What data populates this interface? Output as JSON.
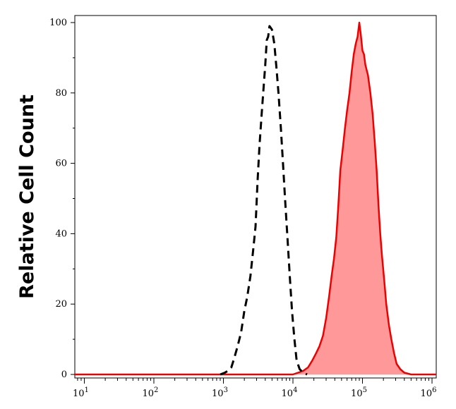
{
  "chart_data": {
    "type": "area",
    "title": "",
    "xlabel": "",
    "ylabel": "Relative Cell Count",
    "x_scale": "log",
    "xlim": [
      7.3,
      1150000
    ],
    "ylim": [
      -1,
      102
    ],
    "x_ticks": [
      {
        "value": 10,
        "base": "10",
        "exp": "1"
      },
      {
        "value": 100,
        "base": "10",
        "exp": "2"
      },
      {
        "value": 1000,
        "base": "10",
        "exp": "3"
      },
      {
        "value": 10000,
        "base": "10",
        "exp": "4"
      },
      {
        "value": 100000,
        "base": "10",
        "exp": "5"
      },
      {
        "value": 1000000,
        "base": "10",
        "exp": "6"
      }
    ],
    "y_ticks": [
      0,
      20,
      40,
      60,
      80,
      100
    ],
    "grid": false,
    "legend": "none",
    "series": [
      {
        "style": "dashed black line, unfilled",
        "color": "#000000",
        "points": [
          [
            900,
            0
          ],
          [
            1050,
            0.5
          ],
          [
            1150,
            1
          ],
          [
            1300,
            2
          ],
          [
            1400,
            4
          ],
          [
            1600,
            8
          ],
          [
            1800,
            12
          ],
          [
            2000,
            18
          ],
          [
            2200,
            22
          ],
          [
            2450,
            28
          ],
          [
            2700,
            36
          ],
          [
            2900,
            42
          ],
          [
            3100,
            55
          ],
          [
            3300,
            65
          ],
          [
            3550,
            74
          ],
          [
            3800,
            82
          ],
          [
            4000,
            88
          ],
          [
            4200,
            95
          ],
          [
            4400,
            96
          ],
          [
            4600,
            99
          ],
          [
            5000,
            98
          ],
          [
            5400,
            94
          ],
          [
            5800,
            87
          ],
          [
            6200,
            80
          ],
          [
            6700,
            70
          ],
          [
            7200,
            60
          ],
          [
            7700,
            50
          ],
          [
            8400,
            38
          ],
          [
            9000,
            28
          ],
          [
            9700,
            18
          ],
          [
            10500,
            10
          ],
          [
            11300,
            4
          ],
          [
            12500,
            1.5
          ],
          [
            14000,
            0.5
          ],
          [
            16000,
            0
          ]
        ]
      },
      {
        "style": "red line with pink fill",
        "color": "#ee0000",
        "fill": "#ff9999",
        "points": [
          [
            7.3,
            0
          ],
          [
            100,
            0
          ],
          [
            900,
            0
          ],
          [
            10000,
            0
          ],
          [
            14000,
            1
          ],
          [
            16500,
            2
          ],
          [
            19000,
            4
          ],
          [
            21500,
            6
          ],
          [
            24000,
            8
          ],
          [
            27000,
            11
          ],
          [
            30000,
            16
          ],
          [
            33000,
            22
          ],
          [
            36000,
            28
          ],
          [
            39000,
            33
          ],
          [
            42000,
            39
          ],
          [
            45000,
            48
          ],
          [
            48000,
            58
          ],
          [
            52000,
            64
          ],
          [
            56000,
            70
          ],
          [
            60000,
            75
          ],
          [
            65000,
            80
          ],
          [
            70000,
            86
          ],
          [
            75000,
            91
          ],
          [
            80000,
            94
          ],
          [
            85000,
            96
          ],
          [
            90000,
            100
          ],
          [
            94000,
            97
          ],
          [
            100000,
            92
          ],
          [
            105000,
            91
          ],
          [
            110000,
            88
          ],
          [
            120000,
            85
          ],
          [
            130000,
            80
          ],
          [
            140000,
            74
          ],
          [
            150000,
            66
          ],
          [
            160000,
            58
          ],
          [
            170000,
            48
          ],
          [
            180000,
            40
          ],
          [
            190000,
            34
          ],
          [
            205000,
            27
          ],
          [
            220000,
            20
          ],
          [
            240000,
            14
          ],
          [
            260000,
            10
          ],
          [
            285000,
            6
          ],
          [
            310000,
            3
          ],
          [
            350000,
            1.5
          ],
          [
            400000,
            0.5
          ],
          [
            500000,
            0
          ],
          [
            1150000,
            0
          ]
        ]
      }
    ]
  }
}
